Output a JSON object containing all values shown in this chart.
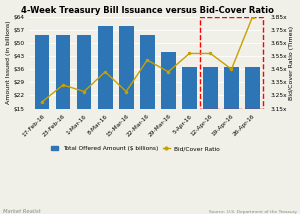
{
  "title": "4-Week Treasury Bill Issuance versus Bid-Cover Ratio",
  "categories": [
    "17-Feb-16",
    "23-Feb-16",
    "1-Mar-16",
    "8-Mar-16",
    "15-Mar-16",
    "22-Mar-16",
    "29-Mar-16",
    "5-Apr-16",
    "12-Apr-16",
    "19-Apr-16",
    "26-Apr-16"
  ],
  "bar_values": [
    54,
    54,
    54,
    59,
    59,
    54,
    45,
    37,
    37,
    37,
    37
  ],
  "line_values": [
    3.2,
    3.33,
    3.28,
    3.43,
    3.28,
    3.52,
    3.43,
    3.57,
    3.57,
    3.45,
    3.85
  ],
  "bar_color": "#2E75B6",
  "line_color": "#C8A000",
  "ylim_left": [
    15,
    64
  ],
  "ylim_right": [
    3.15,
    3.85
  ],
  "yticks_left": [
    15,
    22,
    29,
    36,
    43,
    50,
    57,
    64
  ],
  "yticks_right": [
    3.15,
    3.25,
    3.35,
    3.45,
    3.55,
    3.65,
    3.75,
    3.85
  ],
  "ylabel_left": "Amount Issued (in billions)",
  "ylabel_right": "Bid/Cover Ratio (Times)",
  "legend_bar": "Total Offered Amount ($ billions)",
  "legend_line": "Bid/Cover Ratio",
  "source": "Source: U.S. Department of the Treasury",
  "watermark": "Market Realist",
  "background_color": "#F0EFE8",
  "title_fontsize": 6.0,
  "axis_fontsize": 4.5,
  "tick_fontsize": 4.2,
  "legend_fontsize": 4.2
}
